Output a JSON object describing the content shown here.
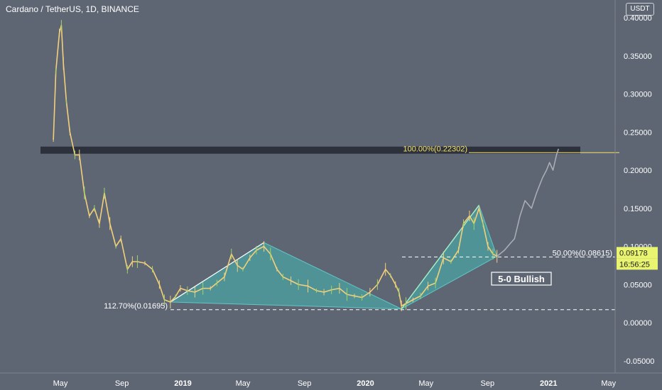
{
  "header": {
    "title": "Cardano / TetherUS, 1D, BINANCE",
    "unit": "USDT"
  },
  "price_badges": {
    "last_price": "0.09178",
    "countdown": "16:56:25"
  },
  "annotations": {
    "fib_100": "100.00%(0.22302)",
    "fib_50": "50.00%(0.08615)",
    "fib_112": "112.70%(0.01695)",
    "pattern": "5-0 Bullish"
  },
  "colors": {
    "background": "#5f6673",
    "candle": "#f2d07a",
    "projection": "#a9adb4",
    "pattern_fill": "#4aa3a3",
    "pattern_line": "#a6f0c6",
    "zone": "#2a2e39",
    "fib_line": "#f5e26b",
    "badge": "#e9f570"
  },
  "chart_data": {
    "type": "line",
    "series_type": "candlestick (approximate close path)",
    "xlabel": "",
    "ylabel": "",
    "ylim": [
      -0.07,
      0.41
    ],
    "y_ticks": [
      -0.05,
      0.0,
      0.05,
      0.1,
      0.15,
      0.2,
      0.25,
      0.3,
      0.35,
      0.4
    ],
    "y_tick_labels": [
      "-0.05000",
      "0.00000",
      "0.05000",
      "0.10000",
      "0.15000",
      "0.20000",
      "0.25000",
      "0.30000",
      "0.35000",
      "0.40000"
    ],
    "x_ticks": [
      "2018-05-01",
      "2018-09-01",
      "2019-01-01",
      "2019-05-01",
      "2019-09-01",
      "2020-01-01",
      "2020-05-01",
      "2020-09-01",
      "2021-01-01",
      "2021-05-01"
    ],
    "x_tick_labels": [
      "May",
      "Sep",
      "2019",
      "May",
      "Sep",
      "2020",
      "May",
      "Sep",
      "2021",
      "May"
    ],
    "price_path": [
      [
        "2018-04-17",
        0.24
      ],
      [
        "2018-04-22",
        0.33
      ],
      [
        "2018-04-29",
        0.38
      ],
      [
        "2018-05-03",
        0.39
      ],
      [
        "2018-05-07",
        0.34
      ],
      [
        "2018-05-13",
        0.29
      ],
      [
        "2018-05-20",
        0.25
      ],
      [
        "2018-05-30",
        0.22
      ],
      [
        "2018-06-08",
        0.22
      ],
      [
        "2018-06-18",
        0.17
      ],
      [
        "2018-06-28",
        0.14
      ],
      [
        "2018-07-08",
        0.15
      ],
      [
        "2018-07-18",
        0.13
      ],
      [
        "2018-07-28",
        0.17
      ],
      [
        "2018-08-08",
        0.13
      ],
      [
        "2018-08-20",
        0.1
      ],
      [
        "2018-08-30",
        0.11
      ],
      [
        "2018-09-12",
        0.07
      ],
      [
        "2018-09-22",
        0.08
      ],
      [
        "2018-10-02",
        0.08
      ],
      [
        "2018-10-17",
        0.078
      ],
      [
        "2018-11-01",
        0.07
      ],
      [
        "2018-11-15",
        0.05
      ],
      [
        "2018-11-25",
        0.03
      ],
      [
        "2018-12-07",
        0.027
      ],
      [
        "2018-12-17",
        0.034
      ],
      [
        "2018-12-27",
        0.045
      ],
      [
        "2019-01-10",
        0.042
      ],
      [
        "2019-01-25",
        0.04
      ],
      [
        "2019-02-10",
        0.045
      ],
      [
        "2019-02-25",
        0.045
      ],
      [
        "2019-03-10",
        0.052
      ],
      [
        "2019-03-25",
        0.06
      ],
      [
        "2019-04-08",
        0.09
      ],
      [
        "2019-04-20",
        0.075
      ],
      [
        "2019-05-01",
        0.07
      ],
      [
        "2019-05-15",
        0.085
      ],
      [
        "2019-05-28",
        0.095
      ],
      [
        "2019-06-12",
        0.1
      ],
      [
        "2019-06-25",
        0.09
      ],
      [
        "2019-07-08",
        0.07
      ],
      [
        "2019-07-20",
        0.06
      ],
      [
        "2019-08-05",
        0.055
      ],
      [
        "2019-08-20",
        0.05
      ],
      [
        "2019-09-08",
        0.048
      ],
      [
        "2019-09-25",
        0.042
      ],
      [
        "2019-10-10",
        0.04
      ],
      [
        "2019-10-25",
        0.043
      ],
      [
        "2019-11-10",
        0.045
      ],
      [
        "2019-11-25",
        0.037
      ],
      [
        "2019-12-10",
        0.035
      ],
      [
        "2019-12-25",
        0.033
      ],
      [
        "2020-01-10",
        0.04
      ],
      [
        "2020-01-25",
        0.05
      ],
      [
        "2020-02-10",
        0.07
      ],
      [
        "2020-02-20",
        0.062
      ],
      [
        "2020-03-01",
        0.05
      ],
      [
        "2020-03-08",
        0.04
      ],
      [
        "2020-03-13",
        0.022
      ],
      [
        "2020-03-22",
        0.025
      ],
      [
        "2020-04-05",
        0.03
      ],
      [
        "2020-04-20",
        0.035
      ],
      [
        "2020-05-05",
        0.048
      ],
      [
        "2020-05-20",
        0.052
      ],
      [
        "2020-06-05",
        0.085
      ],
      [
        "2020-06-20",
        0.08
      ],
      [
        "2020-07-05",
        0.095
      ],
      [
        "2020-07-15",
        0.13
      ],
      [
        "2020-07-27",
        0.14
      ],
      [
        "2020-08-05",
        0.13
      ],
      [
        "2020-08-15",
        0.15
      ],
      [
        "2020-08-23",
        0.13
      ],
      [
        "2020-09-02",
        0.1
      ],
      [
        "2020-09-12",
        0.09
      ],
      [
        "2020-09-20",
        0.087
      ]
    ],
    "projection_path": [
      [
        "2020-09-20",
        0.087
      ],
      [
        "2020-10-05",
        0.095
      ],
      [
        "2020-10-18",
        0.105
      ],
      [
        "2020-10-25",
        0.11
      ],
      [
        "2020-11-05",
        0.14
      ],
      [
        "2020-11-15",
        0.16
      ],
      [
        "2020-11-28",
        0.15
      ],
      [
        "2020-12-08",
        0.17
      ],
      [
        "2020-12-20",
        0.19
      ],
      [
        "2020-12-28",
        0.2
      ],
      [
        "2021-01-03",
        0.21
      ],
      [
        "2021-01-10",
        0.2
      ],
      [
        "2021-01-17",
        0.22
      ],
      [
        "2021-01-21",
        0.228
      ]
    ],
    "pattern_points": [
      [
        "2018-12-07",
        0.027
      ],
      [
        "2019-06-12",
        0.105
      ],
      [
        "2020-03-13",
        0.018
      ],
      [
        "2020-08-15",
        0.154
      ],
      [
        "2020-09-20",
        0.087
      ]
    ],
    "resistance_zone": {
      "x_start": "2018-04-08",
      "x_end": "2021-02-20",
      "y_low": 0.222,
      "y_high": 0.23
    },
    "levels": [
      {
        "label": "100.00%(0.22302)",
        "value": 0.22302
      },
      {
        "label": "50.00%(0.08615)",
        "value": 0.08615
      },
      {
        "label": "112.70%(0.01695)",
        "value": 0.01695
      }
    ],
    "last_price": 0.09178
  }
}
